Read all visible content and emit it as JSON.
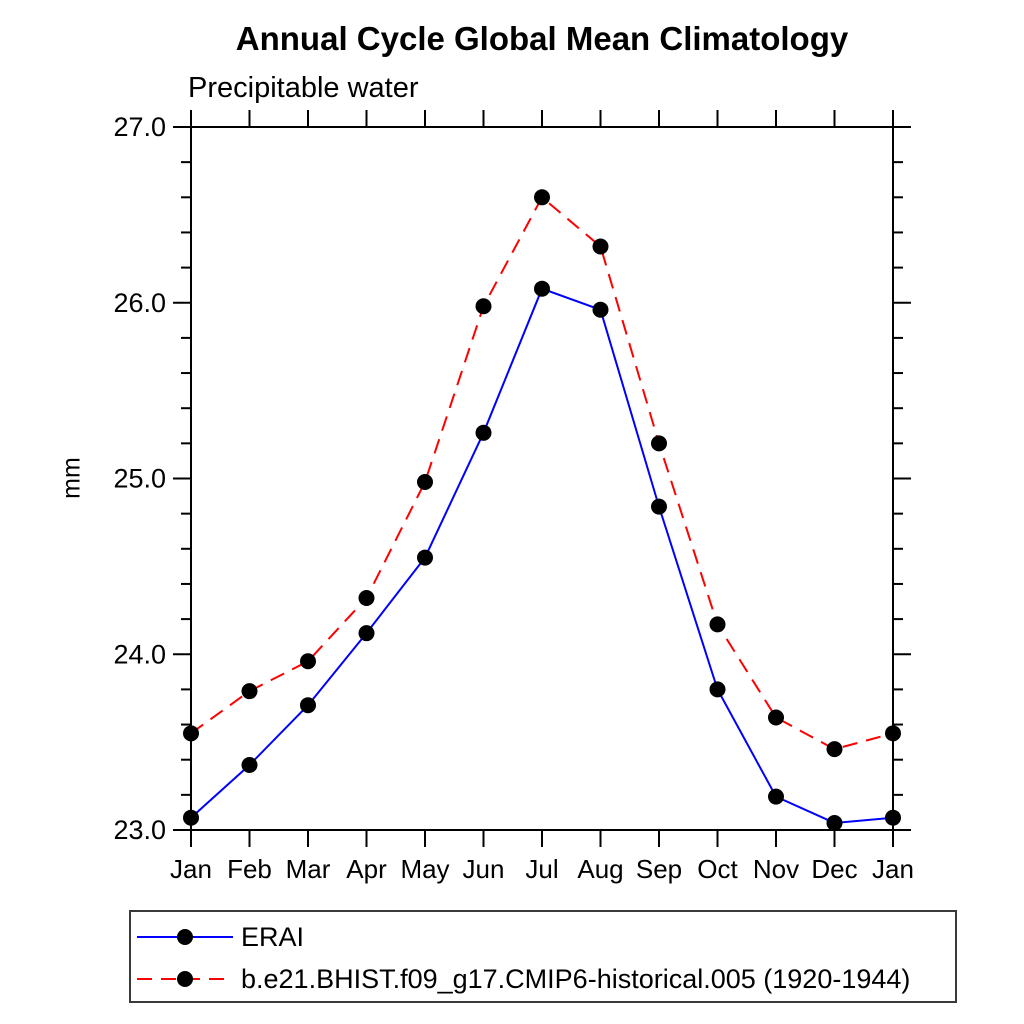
{
  "chart_data": {
    "type": "line",
    "title": "Annual Cycle Global Mean Climatology",
    "subtitle": "Precipitable water",
    "xlabel": "",
    "ylabel": "mm",
    "categories": [
      "Jan",
      "Feb",
      "Mar",
      "Apr",
      "May",
      "Jun",
      "Jul",
      "Aug",
      "Sep",
      "Oct",
      "Nov",
      "Dec",
      "Jan"
    ],
    "series": [
      {
        "name": "ERAI",
        "color": "#0000ff",
        "style": "solid",
        "marker": "black-dot",
        "values": [
          23.07,
          23.37,
          23.71,
          24.12,
          24.55,
          25.26,
          26.08,
          25.96,
          24.84,
          23.8,
          23.19,
          23.04,
          23.07
        ]
      },
      {
        "name": "b.e21.BHIST.f09_g17.CMIP6-historical.005 (1920-1944)",
        "color": "#ff0000",
        "style": "dashed",
        "marker": "black-dot",
        "values": [
          23.55,
          23.79,
          23.96,
          24.32,
          24.98,
          25.98,
          26.6,
          26.32,
          25.2,
          24.17,
          23.64,
          23.46,
          23.55
        ]
      }
    ],
    "ylim": [
      23.0,
      27.0
    ],
    "ytick_values": [
      23,
      24,
      25,
      26,
      27
    ],
    "ytick_labels": [
      "23.0",
      "24.0",
      "25.0",
      "26.0",
      "27.0"
    ],
    "minor_tick_step": 0.2,
    "grid": false,
    "legend_position": "bottom-left",
    "marker_color": "#000000",
    "axis_color": "#000000"
  }
}
